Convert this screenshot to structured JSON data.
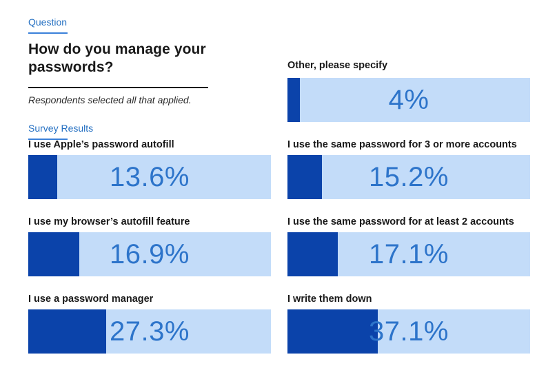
{
  "header": {
    "eyebrow_link": "Question",
    "title": "How do you manage your passwords?",
    "note": "Respondents selected all that applied.",
    "section_link": "Survey Results"
  },
  "colors": {
    "bar_fill_dark_blue": "#0b43aa",
    "bar_track_light_blue": "#c3dcf9",
    "value_text_blue": "#2d74ca",
    "link_blue": "#2570c2",
    "heading_text": "#191919"
  },
  "chart_data": {
    "type": "bar",
    "orientation": "horizontal",
    "title": "How do you manage your passwords?",
    "subtitle": "Respondents selected all that applied.",
    "section_label": "Survey Results",
    "unit": "percent",
    "axes": "none",
    "legend": "none",
    "categories": [
      "I use Apple’s password autofill",
      "I use my browser’s autofill feature",
      "I use a password manager",
      "Other, please specify",
      "I use the same password for 3 or more accounts",
      "I use the same password for at least 2 accounts",
      "I write them down"
    ],
    "values": [
      13.6,
      16.9,
      27.3,
      4,
      15.2,
      17.1,
      37.1
    ],
    "value_labels": [
      "13.6%",
      "16.9%",
      "27.3%",
      "4%",
      "15.2%",
      "17.1%",
      "37.1%"
    ]
  },
  "bars": {
    "left": [
      {
        "label": "I use Apple’s password autofill",
        "value": 13.6,
        "value_label": "13.6%",
        "fill_pct": 12
      },
      {
        "label": "I use my browser’s autofill feature",
        "value": 16.9,
        "value_label": "16.9%",
        "fill_pct": 21
      },
      {
        "label": "I use a password manager",
        "value": 27.3,
        "value_label": "27.3%",
        "fill_pct": 32
      }
    ],
    "right": [
      {
        "label": "Other, please specify",
        "value": 4,
        "value_label": "4%",
        "fill_pct": 5
      },
      {
        "label": "I use the same password for 3 or more accounts",
        "value": 15.2,
        "value_label": "15.2%",
        "fill_pct": 14.2
      },
      {
        "label": "I use the same password for at least 2 accounts",
        "value": 17.1,
        "value_label": "17.1%",
        "fill_pct": 20.7
      },
      {
        "label": "I write them down",
        "value": 37.1,
        "value_label": "37.1%",
        "fill_pct": 37.2
      }
    ]
  }
}
